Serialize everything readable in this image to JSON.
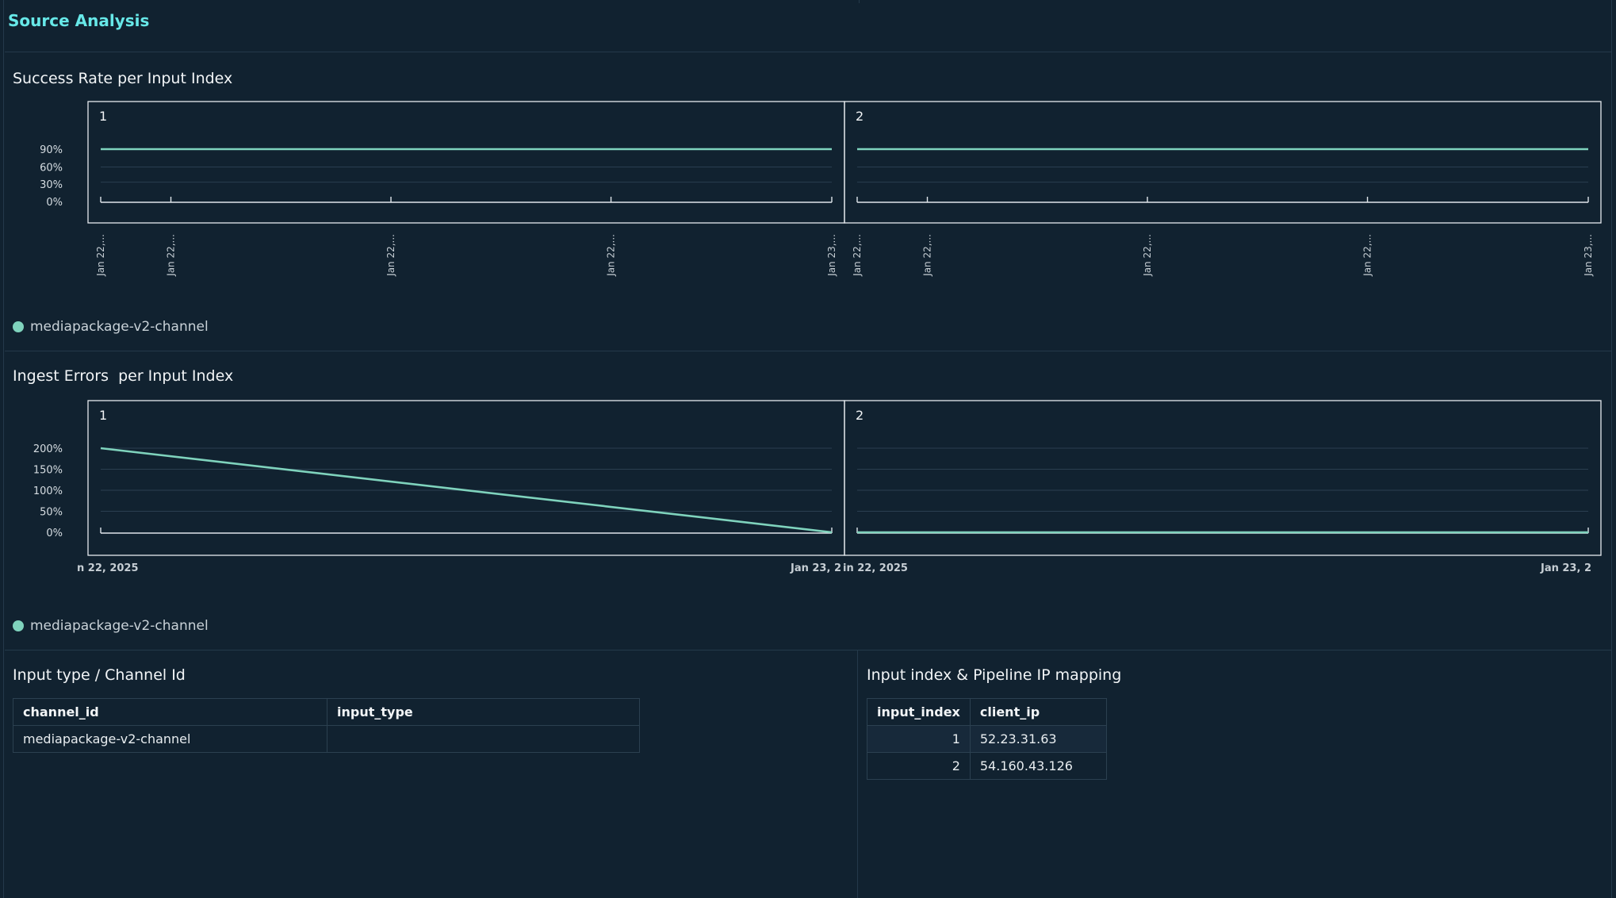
{
  "section": {
    "title": "Source Analysis"
  },
  "success_panel": {
    "title": "Success Rate per Input Index",
    "legend": "mediapackage-v2-channel"
  },
  "errors_panel": {
    "title": "Ingest Errors  per Input Index",
    "legend": "mediapackage-v2-channel"
  },
  "colors": {
    "line": "#7fd3bd",
    "frame": "#e6ebef",
    "grid": "#2a3f50",
    "accent_title": "#67e8e8"
  },
  "chart_data": [
    {
      "type": "line",
      "title": "Success Rate per Input Index",
      "facet": "1",
      "ylim": [
        0,
        100
      ],
      "yticks": [
        "90%",
        "60%",
        "30%",
        "0%"
      ],
      "xticks": [
        "Jan 22,...",
        "Jan 22,...",
        "Jan 22,...",
        "Jan 22,...",
        "Jan 23,..."
      ],
      "series": [
        {
          "name": "mediapackage-v2-channel",
          "values": [
            100,
            100
          ]
        }
      ]
    },
    {
      "type": "line",
      "title": "Success Rate per Input Index",
      "facet": "2",
      "ylim": [
        0,
        100
      ],
      "xticks": [
        "Jan 22,...",
        "Jan 22,...",
        "Jan 22,...",
        "Jan 22,...",
        "Jan 23,..."
      ],
      "series": [
        {
          "name": "mediapackage-v2-channel",
          "values": [
            100,
            100
          ]
        }
      ]
    },
    {
      "type": "line",
      "title": "Ingest Errors  per Input Index",
      "facet": "1",
      "ylim": [
        0,
        200
      ],
      "yticks": [
        "200%",
        "150%",
        "100%",
        "50%",
        "0%"
      ],
      "xticks": [
        "n 22, 2025",
        "Jan 23, 2"
      ],
      "series": [
        {
          "name": "mediapackage-v2-channel",
          "values": [
            200,
            0
          ]
        }
      ]
    },
    {
      "type": "line",
      "title": "Ingest Errors  per Input Index",
      "facet": "2",
      "ylim": [
        0,
        200
      ],
      "xticks": [
        "in 22, 2025",
        "Jan 23, 2"
      ],
      "series": [
        {
          "name": "mediapackage-v2-channel",
          "values": [
            0,
            0
          ]
        }
      ]
    }
  ],
  "channel_table": {
    "title": "Input type / Channel Id",
    "columns": [
      "channel_id",
      "input_type"
    ],
    "rows": [
      [
        "mediapackage-v2-channel",
        ""
      ]
    ]
  },
  "ip_table": {
    "title": "Input index & Pipeline IP mapping",
    "columns": [
      "input_index",
      "client_ip"
    ],
    "rows": [
      [
        "1",
        "52.23.31.63"
      ],
      [
        "2",
        "54.160.43.126"
      ]
    ]
  }
}
